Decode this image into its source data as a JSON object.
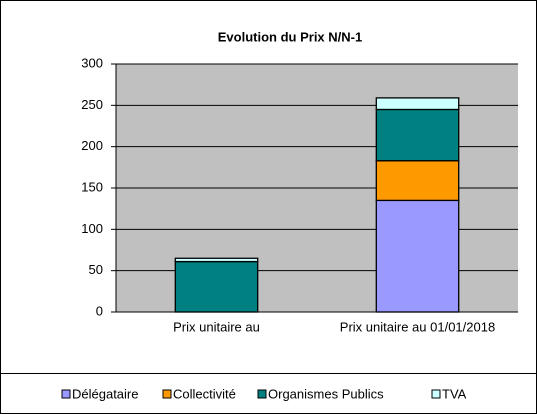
{
  "chart_data": {
    "type": "stacked_bar",
    "title": "Evolution du Prix N/N-1",
    "categories": [
      "Prix unitaire  au",
      "Prix unitaire  au 01/01/2018"
    ],
    "series": [
      {
        "name": "Délégataire",
        "color": "#9999FF",
        "values": [
          0,
          135
        ]
      },
      {
        "name": "Collectivité",
        "color": "#FF9900",
        "values": [
          0,
          48
        ]
      },
      {
        "name": "Organismes Publics",
        "color": "#008080",
        "values": [
          61,
          62
        ]
      },
      {
        "name": "TVA",
        "color": "#CCFFFF",
        "values": [
          4,
          14
        ]
      }
    ],
    "ylim": [
      0,
      300
    ],
    "yticks": [
      0,
      50,
      100,
      150,
      200,
      250,
      300
    ],
    "grid": true,
    "legend": "bottom"
  }
}
